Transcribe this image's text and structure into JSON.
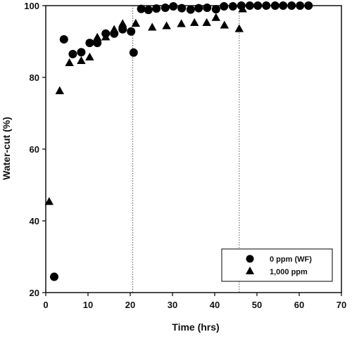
{
  "chart_data": {
    "type": "scatter",
    "title": "",
    "xlabel": "Time (hrs)",
    "ylabel": "Water-cut (%)",
    "xlim": [
      0,
      70
    ],
    "ylim": [
      20,
      100
    ],
    "xticks": [
      0,
      10,
      20,
      30,
      40,
      50,
      60,
      70
    ],
    "yticks": [
      20,
      40,
      60,
      80,
      100
    ],
    "grid": false,
    "legend_position": "bottom-right",
    "reference_lines_x": [
      20.6,
      45.8
    ],
    "series": [
      {
        "name": "0 ppm (WF)",
        "marker": "circle",
        "color": "#000000",
        "x": [
          2.0,
          4.3,
          6.4,
          8.4,
          10.4,
          12.2,
          14.2,
          16.2,
          18.2,
          20.2,
          20.8,
          22.6,
          24.3,
          26.2,
          28.3,
          30.2,
          32.2,
          34.3,
          36.2,
          38.2,
          40.3,
          42.2,
          44.3,
          46.3,
          48.3,
          50.2,
          52.2,
          54.3,
          56.2,
          58.2,
          60.2,
          62.2
        ],
        "y": [
          24.4,
          90.6,
          86.5,
          87.0,
          89.6,
          89.6,
          92.2,
          92.2,
          93.4,
          92.8,
          86.9,
          99.1,
          98.8,
          99.2,
          99.4,
          99.8,
          99.3,
          98.9,
          99.3,
          99.4,
          99.0,
          99.8,
          99.8,
          100.0,
          100.0,
          100.0,
          100.0,
          100.0,
          100.0,
          100.0,
          100.0,
          100.0
        ]
      },
      {
        "name": "1,000 ppm",
        "marker": "triangle",
        "color": "#000000",
        "x": [
          0.8,
          3.3,
          5.6,
          8.4,
          10.4,
          12.2,
          14.2,
          16.2,
          18.2,
          21.3,
          25.2,
          28.6,
          32.1,
          35.2,
          38.1,
          40.3,
          42.3,
          45.8,
          46.6
        ],
        "y": [
          45.4,
          76.3,
          84.1,
          84.7,
          85.7,
          91.2,
          91.3,
          93.4,
          95.0,
          95.1,
          94.0,
          94.4,
          95.0,
          95.3,
          95.3,
          96.7,
          94.6,
          93.6,
          99.1
        ]
      }
    ]
  }
}
